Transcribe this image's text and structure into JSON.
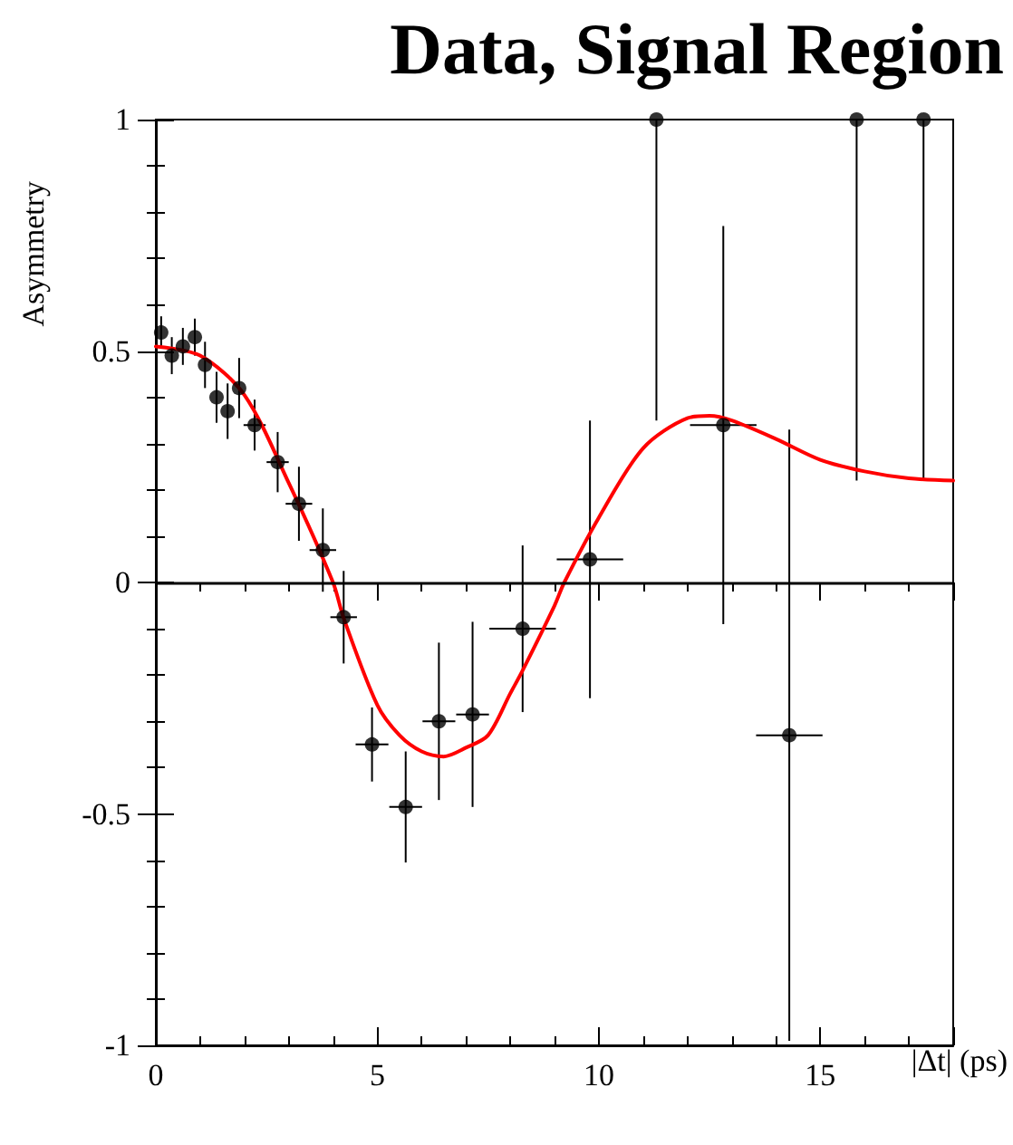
{
  "chart_data": {
    "type": "scatter",
    "title": "Data, Signal Region",
    "xlabel": "|Δt| (ps)",
    "ylabel": "Asymmetry",
    "xlim": [
      0,
      18
    ],
    "xticks": [
      0,
      5,
      10,
      15
    ],
    "ylim": [
      -1,
      1
    ],
    "yticks": [
      -1,
      -0.5,
      0,
      0.5,
      1
    ],
    "grid": false,
    "marker": "circle",
    "ref_lines": [
      {
        "axis": "y",
        "value": 0,
        "color": "#000000"
      }
    ],
    "series": [
      {
        "color": "#000000",
        "x": [
          0.12,
          0.36,
          0.61,
          0.88,
          1.11,
          1.37,
          1.62,
          1.88,
          2.23,
          2.75,
          3.23,
          3.77,
          4.24,
          4.88,
          5.64,
          6.39,
          7.15,
          8.28,
          9.8,
          11.3,
          12.81,
          14.3,
          15.82,
          17.33
        ],
        "values": [
          0.54,
          0.49,
          0.51,
          0.53,
          0.47,
          0.4,
          0.37,
          0.42,
          0.34,
          0.26,
          0.17,
          0.07,
          -0.075,
          -0.35,
          -0.485,
          -0.3,
          -0.285,
          -0.1,
          0.05,
          1,
          0.34,
          -0.33,
          1,
          1
        ],
        "errors": [
          0.035,
          0.04,
          0.04,
          0.04,
          0.05,
          0.055,
          0.06,
          0.065,
          0.055,
          0.065,
          0.08,
          0.09,
          0.1,
          0.08,
          0.12,
          0.17,
          0.2,
          0.18,
          0.3,
          [
            0.35,
            1
          ],
          0.43,
          0.66,
          [
            0.22,
            1
          ],
          [
            0.22,
            1
          ]
        ],
        "xerrors": [
          null,
          null,
          null,
          null,
          null,
          null,
          null,
          null,
          0.25,
          0.25,
          0.3,
          0.3,
          0.3,
          0.37,
          0.37,
          0.37,
          0.37,
          0.75,
          0.75,
          null,
          0.75,
          0.75,
          null,
          null
        ]
      },
      {
        "type": "line",
        "color": "#ff0000",
        "marker": "none",
        "line_style": "solid",
        "x": [
          0,
          1,
          2,
          3,
          4,
          4.24,
          5,
          5.5,
          6,
          6.5,
          7,
          7.5,
          8,
          8.28,
          9,
          9.22,
          10,
          11,
          12,
          12.5,
          13,
          14,
          15,
          16,
          17,
          18
        ],
        "values": [
          0.51,
          0.49,
          0.405,
          0.215,
          0.0,
          -0.077,
          -0.265,
          -0.33,
          -0.365,
          -0.376,
          -0.357,
          -0.33,
          -0.24,
          -0.19,
          -0.05,
          0.0,
          0.14,
          0.29,
          0.355,
          0.36,
          0.35,
          0.31,
          0.265,
          0.24,
          0.225,
          0.22
        ]
      }
    ]
  }
}
